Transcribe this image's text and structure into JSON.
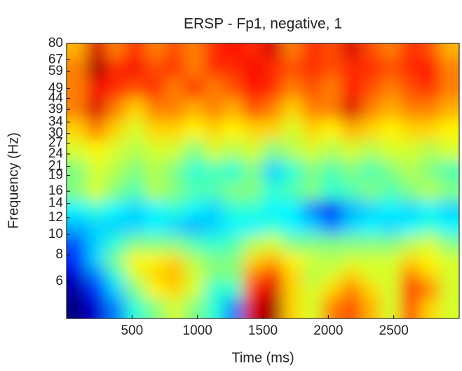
{
  "chart_data": {
    "type": "heatmap",
    "title": "ERSP - Fp1, negative, 1",
    "xlabel": "Time (ms)",
    "ylabel": "Frequency (Hz)",
    "colormap": "jet",
    "clim": [
      -3,
      3
    ],
    "xlim": [
      0,
      3000
    ],
    "xticks": [
      500,
      1000,
      1500,
      2000,
      2500
    ],
    "ylim": [
      4,
      80
    ],
    "ylog": true,
    "yticks": [
      6,
      8,
      10,
      12,
      14,
      16,
      19,
      21,
      24,
      27,
      30,
      34,
      39,
      44,
      49,
      59,
      67,
      80
    ],
    "x": [
      75,
      225,
      375,
      525,
      675,
      825,
      975,
      1125,
      1275,
      1425,
      1575,
      1725,
      1875,
      2025,
      2175,
      2325,
      2475,
      2625,
      2775,
      2925
    ],
    "y": [
      4.5,
      5.5,
      6.5,
      7.5,
      9,
      11,
      13,
      16,
      20,
      25,
      31,
      39,
      49,
      62,
      74
    ],
    "z": [
      [
        -3,
        -2.5,
        -1.5,
        -0.5,
        0,
        0.5,
        0,
        -0.5,
        -1.5,
        2.5,
        2.8,
        1,
        0.5,
        1.5,
        1.8,
        1.2,
        0.5,
        1.8,
        1,
        0.5
      ],
      [
        -2.8,
        -2,
        -1,
        0,
        0.8,
        1,
        0.5,
        -0.5,
        -0.5,
        2,
        2.5,
        1,
        0.5,
        1,
        1.5,
        1,
        0.5,
        2,
        1.5,
        0.5
      ],
      [
        -2.5,
        -1.5,
        -0.5,
        0.5,
        1,
        1.2,
        0.5,
        0,
        0,
        1.5,
        2,
        1,
        0.3,
        0.5,
        1,
        0.5,
        0.5,
        1.5,
        1,
        0.5
      ],
      [
        -2,
        -1,
        0,
        0.8,
        0.8,
        1,
        0.3,
        0,
        0,
        1,
        1.2,
        0.8,
        0.5,
        0.3,
        0.5,
        0.5,
        0.5,
        1,
        0.8,
        0.5
      ],
      [
        -1.8,
        -1,
        -0.5,
        0,
        0,
        0,
        -0.3,
        -0.5,
        -0.3,
        0.3,
        0.5,
        0,
        0,
        0,
        0,
        0,
        0,
        0.3,
        0.5,
        0
      ],
      [
        -1.2,
        -1,
        -1,
        -1,
        -0.8,
        -1,
        -1.2,
        -1,
        -0.8,
        -0.8,
        -0.5,
        -0.8,
        -1,
        -1.5,
        -1,
        -0.8,
        -1,
        -0.8,
        -0.5,
        -0.8
      ],
      [
        -0.8,
        -0.5,
        -0.8,
        -1,
        -0.8,
        -0.5,
        -0.8,
        -1,
        -0.5,
        -0.5,
        -0.8,
        -0.8,
        -1.5,
        -2.3,
        -1.2,
        -1,
        -0.8,
        -1,
        -0.8,
        -1
      ],
      [
        0,
        0.5,
        0,
        -0.3,
        0.3,
        0,
        -0.3,
        -0.3,
        0,
        0,
        -0.5,
        -0.3,
        0,
        -0.5,
        -0.3,
        0,
        -0.3,
        0,
        0.3,
        0
      ],
      [
        0,
        0.5,
        0.3,
        0,
        0.3,
        0,
        -0.5,
        -0.3,
        -0.5,
        0,
        -1,
        -0.5,
        0,
        -0.3,
        0,
        -0.3,
        0,
        0.3,
        0,
        -0.3
      ],
      [
        0.5,
        0.8,
        0.5,
        0.3,
        0.5,
        0.5,
        0,
        0.5,
        0.3,
        0.5,
        0,
        0.3,
        0.5,
        0.3,
        0.5,
        0.3,
        0.5,
        0.5,
        0.3,
        0.5
      ],
      [
        1,
        1.5,
        1,
        0.5,
        1,
        1,
        0.8,
        1,
        0.8,
        1,
        1,
        0.5,
        1,
        0.8,
        1.2,
        1,
        0.8,
        1,
        1,
        0.8
      ],
      [
        1.5,
        2.5,
        1.5,
        1,
        1.5,
        1.5,
        1.2,
        1.5,
        1.2,
        1.8,
        1.5,
        1,
        1.5,
        1.5,
        2.5,
        1.5,
        1.2,
        1.5,
        1.5,
        1.2
      ],
      [
        1.5,
        2.3,
        2,
        1.8,
        2,
        1.5,
        2,
        1.5,
        1.8,
        2.2,
        2,
        1.5,
        1.8,
        1.5,
        2.2,
        1.8,
        1.5,
        1.8,
        2,
        1.5
      ],
      [
        1.5,
        2.8,
        2,
        2.3,
        1.8,
        2,
        1.5,
        2,
        2,
        2.3,
        2,
        1.8,
        2,
        1.8,
        2,
        2,
        1.8,
        2,
        2.2,
        1.5
      ],
      [
        1.2,
        2.5,
        1.5,
        2,
        1.5,
        1.8,
        1.5,
        2,
        2.2,
        2,
        2.5,
        1.5,
        2,
        1.8,
        2.5,
        1.8,
        1.5,
        2,
        1.8,
        1.2
      ]
    ]
  }
}
